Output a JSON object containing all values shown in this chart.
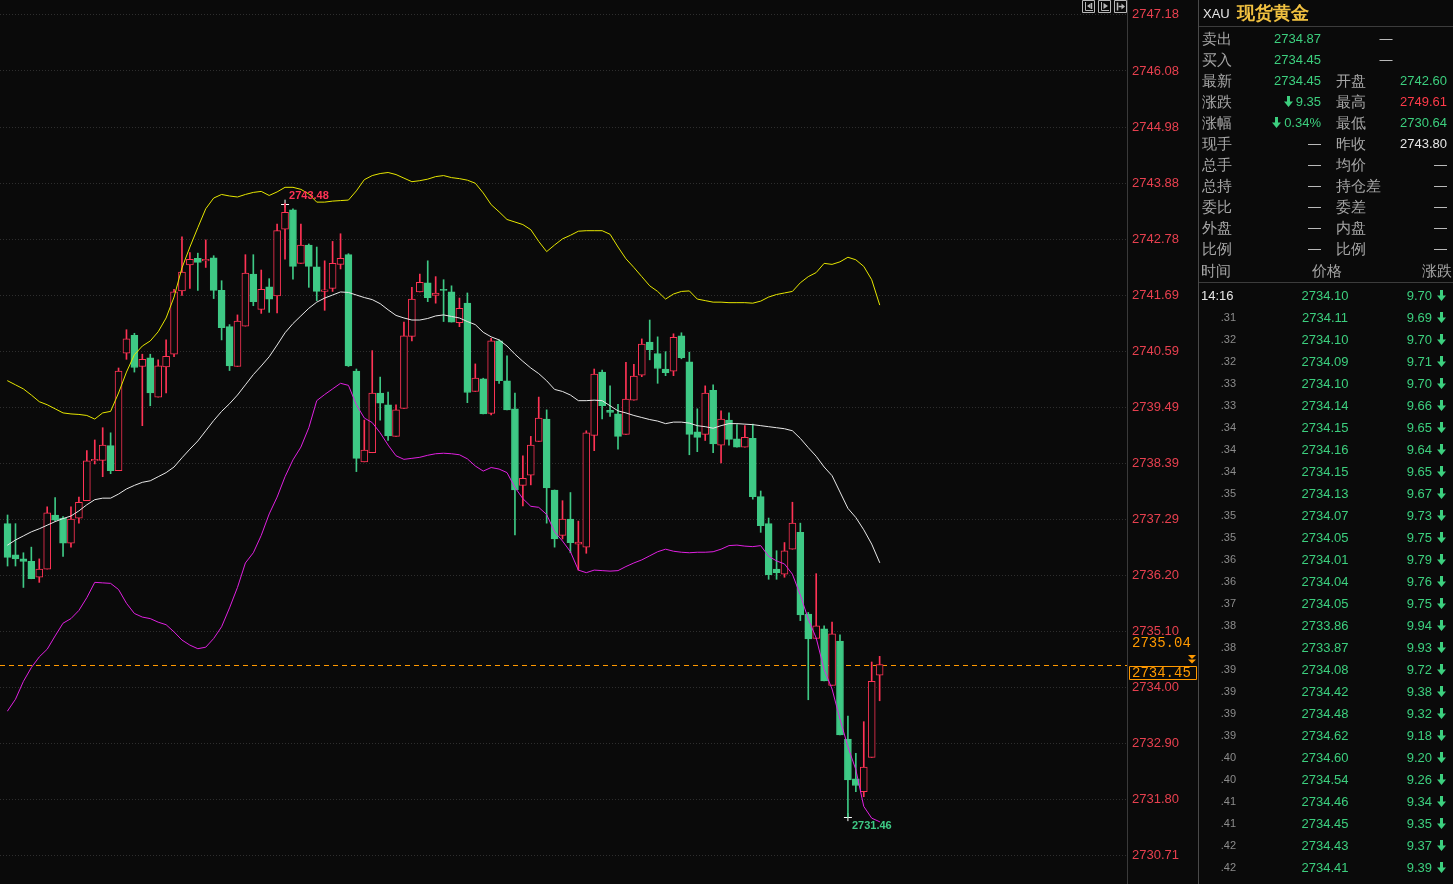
{
  "chart_data": [
    {
      "type": "candlestick",
      "categories": [
        null,
        null,
        null,
        null,
        null,
        null,
        null,
        null,
        null,
        null,
        null,
        null,
        null,
        null,
        null,
        null,
        null,
        null,
        null,
        null,
        null,
        null,
        null,
        null,
        null,
        null,
        null,
        null,
        null,
        null,
        null,
        null,
        null,
        null,
        null,
        null,
        null,
        null,
        null,
        null,
        null,
        null,
        null,
        null,
        null,
        null,
        null,
        null,
        null,
        null,
        null,
        null,
        null,
        null,
        null,
        null,
        null,
        null,
        null,
        null,
        null,
        null,
        null,
        null,
        null,
        null,
        null,
        null,
        null,
        null,
        null,
        null,
        null,
        null,
        null,
        null,
        null,
        null,
        null,
        null,
        null,
        null,
        null,
        null,
        null,
        null,
        null,
        null,
        null,
        null,
        null,
        null,
        null,
        null,
        null,
        null,
        null,
        null,
        null,
        null,
        null,
        null,
        null,
        null,
        null,
        null,
        null,
        null,
        null,
        null,
        null
      ],
      "ohlc": [
        [
          2737.21,
          2737.38,
          2736.38,
          2736.55
        ],
        [
          2736.6,
          2737.21,
          2736.38,
          2736.52
        ],
        [
          2736.52,
          2736.64,
          2735.96,
          2736.47
        ],
        [
          2736.47,
          2736.75,
          2736.13,
          2736.13
        ],
        [
          2736.16,
          2736.52,
          2736.06,
          2736.32
        ],
        [
          2736.32,
          2737.54,
          2736.32,
          2737.42
        ],
        [
          2737.38,
          2737.72,
          2737.26,
          2737.28
        ],
        [
          2737.32,
          2737.35,
          2736.57,
          2736.83
        ],
        [
          2736.83,
          2737.54,
          2736.75,
          2737.3
        ],
        [
          2737.32,
          2737.73,
          2737.22,
          2737.63
        ],
        [
          2737.66,
          2738.64,
          2737.66,
          2738.44
        ],
        [
          2738.44,
          2738.85,
          2738.38,
          2738.47
        ],
        [
          2738.45,
          2739.09,
          2738.13,
          2738.75
        ],
        [
          2738.74,
          2738.99,
          2738.19,
          2738.25
        ],
        [
          2738.25,
          2740.26,
          2738.25,
          2740.2
        ],
        [
          2740.55,
          2741.01,
          2740.43,
          2740.83
        ],
        [
          2740.9,
          2740.94,
          2740.18,
          2740.27
        ],
        [
          2740.29,
          2740.53,
          2739.13,
          2740.43
        ],
        [
          2740.46,
          2740.53,
          2739.52,
          2739.77
        ],
        [
          2739.69,
          2740.42,
          2739.69,
          2740.3
        ],
        [
          2740.28,
          2740.81,
          2739.77,
          2740.49
        ],
        [
          2740.53,
          2741.8,
          2740.48,
          2741.75
        ],
        [
          2741.77,
          2742.83,
          2741.68,
          2742.14
        ],
        [
          2742.28,
          2742.52,
          2741.82,
          2742.39
        ],
        [
          2742.41,
          2742.51,
          2741.78,
          2742.33
        ],
        [
          2742.36,
          2742.77,
          2742.23,
          2742.39
        ],
        [
          2742.42,
          2742.46,
          2741.62,
          2741.78
        ],
        [
          2741.78,
          2741.97,
          2740.81,
          2741.05
        ],
        [
          2741.07,
          2741.11,
          2740.21,
          2740.3
        ],
        [
          2740.29,
          2741.3,
          2740.29,
          2741.18
        ],
        [
          2741.08,
          2742.48,
          2741.08,
          2742.12
        ],
        [
          2742.1,
          2742.48,
          2741.48,
          2741.56
        ],
        [
          2741.41,
          2742.18,
          2741.33,
          2741.8
        ],
        [
          2741.85,
          2742.01,
          2741.35,
          2741.61
        ],
        [
          2741.67,
          2743.08,
          2741.34,
          2742.95
        ],
        [
          2742.98,
          2743.48,
          2742.39,
          2743.31
        ],
        [
          2743.36,
          2743.38,
          2742.0,
          2742.25
        ],
        [
          2742.31,
          2743.08,
          2742.31,
          2742.67
        ],
        [
          2742.67,
          2742.69,
          2741.84,
          2742.25
        ],
        [
          2742.24,
          2742.63,
          2741.58,
          2741.76
        ],
        [
          2741.76,
          2742.36,
          2741.39,
          2741.79
        ],
        [
          2741.82,
          2742.74,
          2741.76,
          2742.31
        ],
        [
          2742.29,
          2742.89,
          2742.2,
          2742.41
        ],
        [
          2742.48,
          2742.5,
          2740.29,
          2740.3
        ],
        [
          2740.2,
          2740.24,
          2738.23,
          2738.49
        ],
        [
          2738.42,
          2739.24,
          2738.42,
          2738.65
        ],
        [
          2738.6,
          2740.6,
          2738.6,
          2739.77
        ],
        [
          2739.77,
          2740.08,
          2739.24,
          2739.57
        ],
        [
          2739.54,
          2739.79,
          2738.84,
          2738.93
        ],
        [
          2738.92,
          2739.54,
          2738.92,
          2739.44
        ],
        [
          2739.47,
          2741.16,
          2739.47,
          2740.89
        ],
        [
          2740.88,
          2741.84,
          2740.79,
          2741.61
        ],
        [
          2741.75,
          2742.1,
          2741.75,
          2741.94
        ],
        [
          2741.93,
          2742.36,
          2741.56,
          2741.64
        ],
        [
          2741.68,
          2742.05,
          2741.53,
          2741.73
        ],
        [
          2741.79,
          2741.99,
          2741.17,
          2741.78
        ],
        [
          2741.75,
          2741.87,
          2741.16,
          2741.16
        ],
        [
          2741.15,
          2741.63,
          2741.07,
          2741.43
        ],
        [
          2741.53,
          2741.73,
          2739.58,
          2739.78
        ],
        [
          2739.8,
          2740.34,
          2739.8,
          2740.06
        ],
        [
          2740.05,
          2740.06,
          2739.36,
          2739.36
        ],
        [
          2739.37,
          2740.84,
          2739.34,
          2740.79
        ],
        [
          2740.79,
          2740.81,
          2739.96,
          2740.01
        ],
        [
          2740.01,
          2740.5,
          2739.44,
          2739.44
        ],
        [
          2739.46,
          2739.77,
          2736.99,
          2737.87
        ],
        [
          2737.96,
          2738.54,
          2737.56,
          2738.1
        ],
        [
          2738.16,
          2738.92,
          2737.97,
          2738.75
        ],
        [
          2738.82,
          2739.69,
          2738.82,
          2739.28
        ],
        [
          2739.26,
          2739.44,
          2737.22,
          2737.91
        ],
        [
          2737.87,
          2737.87,
          2736.75,
          2736.91
        ],
        [
          2736.98,
          2737.66,
          2736.91,
          2737.3
        ],
        [
          2737.3,
          2737.82,
          2736.64,
          2736.84
        ],
        [
          2736.81,
          2737.26,
          2736.3,
          2736.85
        ],
        [
          2736.75,
          2739.03,
          2736.63,
          2738.99
        ],
        [
          2738.94,
          2740.24,
          2738.64,
          2740.14
        ],
        [
          2740.18,
          2740.22,
          2739.26,
          2739.52
        ],
        [
          2739.43,
          2739.91,
          2739.31,
          2739.39
        ],
        [
          2739.36,
          2739.55,
          2738.67,
          2738.92
        ],
        [
          2738.96,
          2740.37,
          2738.96,
          2739.65
        ],
        [
          2739.63,
          2740.33,
          2739.63,
          2740.1
        ],
        [
          2740.12,
          2740.83,
          2740.09,
          2740.73
        ],
        [
          2740.77,
          2741.2,
          2740.42,
          2740.62
        ],
        [
          2740.54,
          2740.87,
          2739.96,
          2740.25
        ],
        [
          2740.24,
          2740.58,
          2740.11,
          2740.17
        ],
        [
          2740.2,
          2740.93,
          2740.11,
          2740.86
        ],
        [
          2740.89,
          2740.95,
          2740.44,
          2740.46
        ],
        [
          2740.38,
          2740.57,
          2738.56,
          2738.96
        ],
        [
          2739.01,
          2739.46,
          2738.62,
          2738.9
        ],
        [
          2738.96,
          2739.91,
          2738.84,
          2739.77
        ],
        [
          2739.82,
          2739.93,
          2738.6,
          2738.77
        ],
        [
          2738.75,
          2739.42,
          2738.4,
          2739.26
        ],
        [
          2739.24,
          2739.38,
          2738.75,
          2738.86
        ],
        [
          2738.87,
          2739.15,
          2738.71,
          2738.71
        ],
        [
          2738.71,
          2739.13,
          2738.71,
          2738.9
        ],
        [
          2738.88,
          2739.16,
          2737.69,
          2737.74
        ],
        [
          2737.74,
          2737.85,
          2737.04,
          2737.17
        ],
        [
          2737.21,
          2737.32,
          2736.12,
          2736.21
        ],
        [
          2736.32,
          2736.68,
          2736.12,
          2736.25
        ],
        [
          2736.22,
          2736.84,
          2736.16,
          2736.68
        ],
        [
          2736.71,
          2737.63,
          2736.71,
          2737.22
        ],
        [
          2737.04,
          2737.22,
          2735.31,
          2735.42
        ],
        [
          2735.44,
          2735.47,
          2733.76,
          2734.95
        ],
        [
          2734.96,
          2736.23,
          2734.96,
          2735.21
        ],
        [
          2735.15,
          2735.21,
          2734.13,
          2734.13
        ],
        [
          2734.04,
          2735.28,
          2734.04,
          2735.05
        ],
        [
          2734.91,
          2735.03,
          2733.07,
          2733.07
        ],
        [
          2732.99,
          2733.44,
          2731.46,
          2732.19
        ],
        [
          2732.21,
          2732.71,
          2731.96,
          2732.08
        ],
        [
          2731.96,
          2733.33,
          2731.86,
          2732.44
        ],
        [
          2732.63,
          2734.5,
          2732.63,
          2734.12
        ],
        [
          2734.24,
          2734.61,
          2733.74,
          2734.45
        ]
      ],
      "colors": [
        "#3ec985",
        "#3ec985",
        "#3ec985",
        "#3ec985",
        "#ff3355",
        "#ff3355",
        "#3ec985",
        "#3ec985",
        "#ff3355",
        "#ff3355",
        "#ff3355",
        "#ff3355",
        "#ff3355",
        "#3ec985",
        "#ff3355",
        "#ff3355",
        "#3ec985",
        "#ff3355",
        "#3ec985",
        "#ff3355",
        "#ff3355",
        "#ff3355",
        "#ff3355",
        "#ff3355",
        "#3ec985",
        "#ff3355",
        "#3ec985",
        "#3ec985",
        "#3ec985",
        "#ff3355",
        "#ff3355",
        "#3ec985",
        "#ff3355",
        "#3ec985",
        "#ff3355",
        "#ff3355",
        "#3ec985",
        "#ff3355",
        "#3ec985",
        "#3ec985",
        "#ff3355",
        "#ff3355",
        "#ff3355",
        "#3ec985",
        "#3ec985",
        "#ff3355",
        "#ff3355",
        "#3ec985",
        "#3ec985",
        "#ff3355",
        "#ff3355",
        "#ff3355",
        "#ff3355",
        "#3ec985",
        "#ff3355",
        "#3ec985",
        "#3ec985",
        "#ff3355",
        "#3ec985",
        "#ff3355",
        "#3ec985",
        "#ff3355",
        "#3ec985",
        "#3ec985",
        "#3ec985",
        "#ff3355",
        "#ff3355",
        "#ff3355",
        "#3ec985",
        "#3ec985",
        "#ff3355",
        "#3ec985",
        "#ff3355",
        "#ff3355",
        "#ff3355",
        "#3ec985",
        "#3ec985",
        "#3ec985",
        "#ff3355",
        "#ff3355",
        "#ff3355",
        "#3ec985",
        "#3ec985",
        "#3ec985",
        "#ff3355",
        "#3ec985",
        "#3ec985",
        "#3ec985",
        "#ff3355",
        "#3ec985",
        "#ff3355",
        "#3ec985",
        "#3ec985",
        "#ff3355",
        "#3ec985",
        "#3ec985",
        "#3ec985",
        "#3ec985",
        "#ff3355",
        "#ff3355",
        "#3ec985",
        "#3ec985",
        "#ff3355",
        "#3ec985",
        "#ff3355",
        "#3ec985",
        "#3ec985",
        "#3ec985",
        "#ff3355",
        "#ff3355",
        "#ff3355"
      ],
      "series": [
        {
          "type": "line",
          "color": "#e6e600",
          "values": [
            2740.01,
            2739.93,
            2739.85,
            2739.73,
            2739.6,
            2739.54,
            2739.46,
            2739.38,
            2739.36,
            2739.35,
            2739.33,
            2739.26,
            2739.38,
            2739.41,
            2739.77,
            2740.18,
            2740.52,
            2740.69,
            2740.79,
            2740.97,
            2741.24,
            2741.65,
            2742.22,
            2742.63,
            2743.01,
            2743.38,
            2743.59,
            2743.66,
            2743.63,
            2743.61,
            2743.66,
            2743.7,
            2743.72,
            2743.64,
            2743.71,
            2743.8,
            2743.8,
            2743.76,
            2743.67,
            2743.51,
            2743.51,
            2743.53,
            2743.54,
            2743.55,
            2743.73,
            2743.95,
            2744.03,
            2744.07,
            2744.09,
            2744.05,
            2743.98,
            2743.91,
            2743.93,
            2743.96,
            2744.01,
            2744.03,
            2743.99,
            2743.97,
            2743.94,
            2743.88,
            2743.69,
            2743.46,
            2743.32,
            2743.17,
            2743.12,
            2743.07,
            2742.97,
            2742.74,
            2742.54,
            2742.67,
            2742.79,
            2742.86,
            2742.94,
            2742.95,
            2742.95,
            2742.95,
            2742.88,
            2742.63,
            2742.4,
            2742.23,
            2742.05,
            2741.87,
            2741.76,
            2741.61,
            2741.71,
            2741.76,
            2741.77,
            2741.61,
            2741.58,
            2741.55,
            2741.55,
            2741.54,
            2741.54,
            2741.54,
            2741.53,
            2741.57,
            2741.65,
            2741.7,
            2741.73,
            2741.76,
            2741.93,
            2742.05,
            2742.13,
            2742.31,
            2742.29,
            2742.34,
            2742.43,
            2742.38,
            2742.25,
            2741.99,
            2741.5
          ]
        },
        {
          "type": "line",
          "color": "#e8e8e8",
          "values": [
            2736.79,
            2736.89,
            2736.97,
            2737.05,
            2737.11,
            2737.18,
            2737.25,
            2737.31,
            2737.36,
            2737.46,
            2737.58,
            2737.68,
            2737.71,
            2737.71,
            2737.79,
            2737.89,
            2737.96,
            2738.02,
            2738.05,
            2738.13,
            2738.21,
            2738.32,
            2738.5,
            2738.67,
            2738.83,
            2739.03,
            2739.23,
            2739.41,
            2739.56,
            2739.73,
            2739.93,
            2740.13,
            2740.3,
            2740.48,
            2740.71,
            2740.95,
            2741.13,
            2741.28,
            2741.43,
            2741.55,
            2741.63,
            2741.69,
            2741.75,
            2741.74,
            2741.69,
            2741.64,
            2741.6,
            2741.52,
            2741.4,
            2741.29,
            2741.24,
            2741.2,
            2741.2,
            2741.23,
            2741.28,
            2741.3,
            2741.27,
            2741.24,
            2741.17,
            2741.11,
            2740.96,
            2740.87,
            2740.81,
            2740.69,
            2740.53,
            2740.39,
            2740.26,
            2740.15,
            2740.01,
            2739.84,
            2739.8,
            2739.73,
            2739.62,
            2739.62,
            2739.63,
            2739.62,
            2739.52,
            2739.42,
            2739.38,
            2739.33,
            2739.29,
            2739.25,
            2739.22,
            2739.17,
            2739.2,
            2739.2,
            2739.18,
            2739.13,
            2739.11,
            2739.08,
            2739.13,
            2739.17,
            2739.17,
            2739.16,
            2739.15,
            2739.13,
            2739.11,
            2739.09,
            2739.07,
            2739.03,
            2738.88,
            2738.7,
            2738.53,
            2738.32,
            2738.15,
            2737.83,
            2737.51,
            2737.33,
            2737.09,
            2736.81,
            2736.45
          ]
        },
        {
          "type": "line",
          "color": "#e020e0",
          "values": [
            2733.54,
            2733.77,
            2734.12,
            2734.39,
            2734.6,
            2734.75,
            2735.01,
            2735.26,
            2735.35,
            2735.51,
            2735.76,
            2736.06,
            2736.05,
            2736.04,
            2735.92,
            2735.65,
            2735.45,
            2735.38,
            2735.35,
            2735.28,
            2735.23,
            2735.09,
            2734.93,
            2734.83,
            2734.76,
            2734.79,
            2734.96,
            2735.19,
            2735.56,
            2735.96,
            2736.44,
            2736.64,
            2736.98,
            2737.4,
            2737.73,
            2738.13,
            2738.46,
            2738.71,
            2739.09,
            2739.62,
            2739.74,
            2739.85,
            2739.96,
            2739.92,
            2739.54,
            2739.28,
            2739.19,
            2738.99,
            2738.75,
            2738.54,
            2738.47,
            2738.49,
            2738.51,
            2738.55,
            2738.58,
            2738.59,
            2738.58,
            2738.56,
            2738.48,
            2738.34,
            2738.24,
            2738.31,
            2738.28,
            2738.21,
            2737.92,
            2737.7,
            2737.55,
            2737.53,
            2737.39,
            2737.05,
            2736.87,
            2736.66,
            2736.3,
            2736.25,
            2736.3,
            2736.29,
            2736.28,
            2736.29,
            2736.37,
            2736.44,
            2736.5,
            2736.58,
            2736.66,
            2736.71,
            2736.67,
            2736.65,
            2736.64,
            2736.65,
            2736.65,
            2736.66,
            2736.71,
            2736.78,
            2736.79,
            2736.77,
            2736.76,
            2736.78,
            2736.57,
            2736.48,
            2736.42,
            2736.22,
            2735.81,
            2735.34,
            2734.97,
            2734.35,
            2733.97,
            2733.38,
            2732.84,
            2732.39,
            2731.67,
            2731.44,
            2731.37
          ]
        }
      ],
      "ylim": [
        2730.15,
        2747.47
      ],
      "yticks": [
        2747.18,
        2746.08,
        2744.98,
        2743.88,
        2742.78,
        2741.69,
        2740.59,
        2739.49,
        2738.39,
        2737.29,
        {
          "value": 2736.2,
          "label": "2736.20"
        },
        {
          "value": 2735.1,
          "label": "2735.10"
        },
        {
          "value": 2734,
          "label": "2734.00"
        },
        {
          "value": 2732.9,
          "label": "2732.90"
        },
        {
          "value": 2731.8,
          "label": "2731.80"
        },
        2730.71
      ],
      "tick_labels": "y",
      "grid": "y",
      "ref_lines": [
        {
          "axis": "y",
          "value": 2734.45,
          "label": "2734.45",
          "color": "#ff9900",
          "line_style": "dashed"
        }
      ],
      "annotations": [
        "2743.48",
        "2731.46",
        "2735.04"
      ]
    },
    {
      "type": "other",
      "title": "现货黄金",
      "subtitle": "XAU",
      "annotations": [
        "卖出",
        "2734.87",
        "—",
        "买入",
        "2734.45",
        "—",
        "最新",
        "2734.45",
        "开盘",
        "2742.60",
        "涨跌",
        "9.35",
        "最高",
        "2749.61",
        "涨幅",
        "0.34%",
        "最低",
        "2730.64",
        "现手",
        "—",
        "昨收",
        "2743.80",
        "总手",
        "—",
        "均价",
        "—",
        "总持",
        "—",
        "持仓差",
        "—",
        "委比",
        "—",
        "委差",
        "—",
        "外盘",
        "—",
        "内盘",
        "—",
        "比例",
        "—",
        "比例",
        "—"
      ]
    },
    {
      "type": "other",
      "annotations": [
        "时间",
        "价格",
        "涨跌",
        "14:16",
        "2734.10",
        "9.70",
        ".31",
        "2734.11",
        "9.69",
        ".32",
        "2734.10",
        "9.70",
        ".32",
        "2734.09",
        "9.71",
        ".33",
        "2734.10",
        "9.70",
        ".33",
        "2734.14",
        "9.66",
        ".34",
        "2734.15",
        "9.65",
        ".34",
        "2734.16",
        "9.64",
        ".34",
        "2734.15",
        "9.65",
        ".35",
        "2734.13",
        "9.67",
        ".35",
        "2734.07",
        "9.73",
        ".35",
        "2734.05",
        "9.75",
        ".36",
        "2734.01",
        "9.79",
        ".36",
        "2734.04",
        "9.76",
        ".37",
        "2734.05",
        "9.75",
        ".38",
        "2733.86",
        "9.94",
        ".38",
        "2733.87",
        "9.93",
        ".39",
        "2734.08",
        "9.72",
        ".39",
        "2734.42",
        "9.38",
        ".39",
        "2734.48",
        "9.32",
        ".39",
        "2734.62",
        "9.18",
        ".40",
        "2734.60",
        "9.20",
        ".40",
        "2734.54",
        "9.26",
        ".41",
        "2734.46",
        "9.34",
        ".41",
        "2734.45",
        "9.35",
        ".42",
        "2734.43",
        "9.37",
        ".42",
        "2734.41",
        "9.39"
      ]
    }
  ]
}
